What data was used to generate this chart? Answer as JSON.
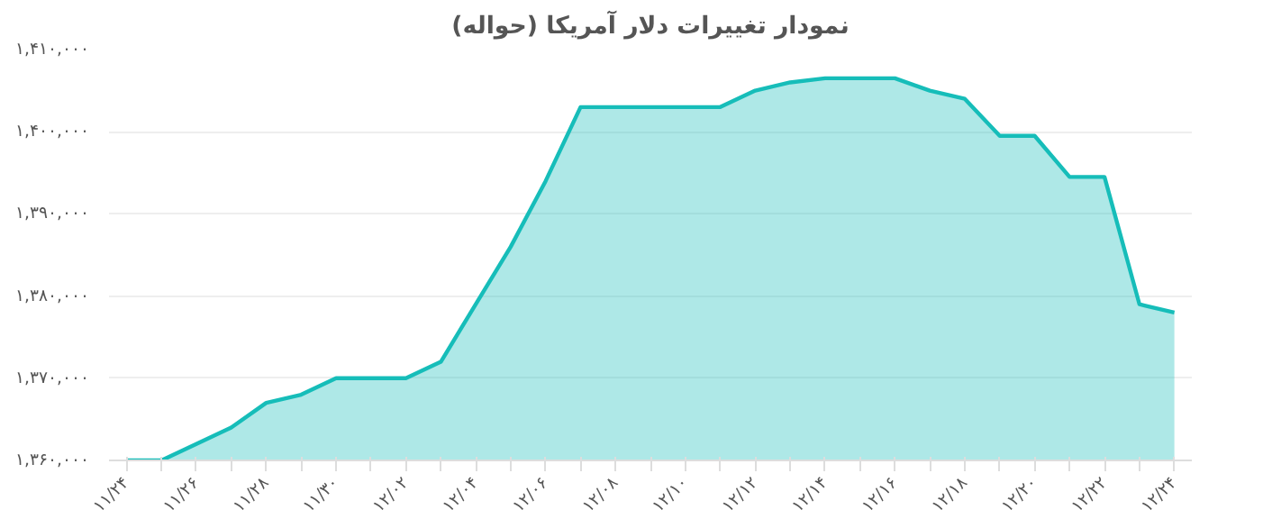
{
  "chart_data": {
    "type": "area",
    "title": "نمودار تغییرات دلار آمریکا (حواله)",
    "categories": [
      "۱۱/۲۴",
      null,
      "۱۱/۲۶",
      null,
      "۱۱/۲۸",
      null,
      "۱۱/۳۰",
      null,
      "۱۲/۰۲",
      null,
      "۱۲/۰۴",
      null,
      "۱۲/۰۶",
      null,
      "۱۲/۰۸",
      null,
      "۱۲/۱۰",
      null,
      "۱۲/۱۲",
      null,
      "۱۲/۱۴",
      null,
      "۱۲/۱۶",
      null,
      "۱۲/۱۸",
      null,
      "۱۲/۲۰",
      null,
      "۱۲/۲۲",
      null,
      "۱۲/۲۴"
    ],
    "series": [
      {
        "color": "#16bdb9",
        "values": [
          1360000,
          1360000,
          1362000,
          1364000,
          1367000,
          1368000,
          1370000,
          1370000,
          1370000,
          1372000,
          1379000,
          1386000,
          1394000,
          1403000,
          1403000,
          1403000,
          1403000,
          1403000,
          1405000,
          1406000,
          1406500,
          1406500,
          1406500,
          1405000,
          1404000,
          1399500,
          1399500,
          1394500,
          1394500,
          1379000,
          1378000
        ]
      }
    ],
    "ylim": [
      1360000,
      1410000
    ],
    "yticks": [
      {
        "value": 1360000,
        "label": "۱,۳۶۰,۰۰۰"
      },
      {
        "value": 1370000,
        "label": "۱,۳۷۰,۰۰۰"
      },
      {
        "value": 1380000,
        "label": "۱,۳۸۰,۰۰۰"
      },
      {
        "value": 1390000,
        "label": "۱,۳۹۰,۰۰۰"
      },
      {
        "value": 1400000,
        "label": "۱,۴۰۰,۰۰۰"
      },
      {
        "value": 1410000,
        "label": "۱,۴۱۰,۰۰۰"
      }
    ],
    "grid": "y",
    "marker": "none",
    "line_style": "solid"
  }
}
